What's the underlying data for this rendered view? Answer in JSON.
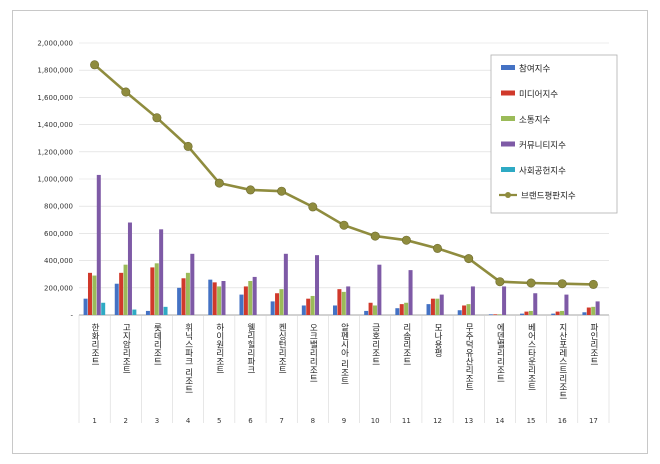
{
  "chart_data": {
    "type": "bar",
    "categories": [
      "한화리조트",
      "고지암리조트",
      "롯데리조트",
      "휘닉스파크 리조트",
      "하이원리조트",
      "웰리힐리파크",
      "켄싱턴리조트",
      "오크밸리리조트",
      "알펜시아 리조트",
      "금호리조트",
      "리솜리조트",
      "모나용평",
      "무주덕유산리조트",
      "에덴밸리리조트",
      "베어스타운리조트",
      "지산포레스트리조트",
      "파인리조트"
    ],
    "category_numbers": [
      "1",
      "2",
      "3",
      "4",
      "5",
      "6",
      "7",
      "8",
      "9",
      "10",
      "11",
      "12",
      "13",
      "14",
      "15",
      "16",
      "17"
    ],
    "ylim": [
      0,
      2000000
    ],
    "yticks": [
      "2,000,000",
      "1,800,000",
      "1,600,000",
      "1,400,000",
      "1,200,000",
      "1,000,000",
      "800,000",
      "600,000",
      "400,000",
      "200,000",
      "-"
    ],
    "series": [
      {
        "name": "참여지수",
        "color": "#4472c4",
        "values": [
          120000,
          230000,
          30000,
          200000,
          260000,
          150000,
          100000,
          70000,
          70000,
          30000,
          50000,
          80000,
          35000,
          5000,
          10000,
          10000,
          20000
        ]
      },
      {
        "name": "미디어지수",
        "color": "#d0392b",
        "values": [
          310000,
          310000,
          350000,
          270000,
          240000,
          210000,
          160000,
          120000,
          190000,
          90000,
          80000,
          120000,
          70000,
          5000,
          25000,
          25000,
          55000
        ]
      },
      {
        "name": "소통지수",
        "color": "#9bbb59",
        "values": [
          290000,
          370000,
          380000,
          310000,
          210000,
          250000,
          190000,
          140000,
          170000,
          70000,
          90000,
          120000,
          80000,
          5000,
          30000,
          30000,
          60000
        ]
      },
      {
        "name": "커뮤니티지수",
        "color": "#7e5aa6",
        "values": [
          1030000,
          680000,
          630000,
          450000,
          250000,
          280000,
          450000,
          440000,
          210000,
          370000,
          330000,
          150000,
          210000,
          210000,
          160000,
          150000,
          100000
        ]
      },
      {
        "name": "사회공헌지수",
        "color": "#2eaac4",
        "values": [
          90000,
          40000,
          60000,
          0,
          0,
          0,
          0,
          0,
          0,
          0,
          0,
          0,
          0,
          0,
          0,
          0,
          0
        ]
      }
    ],
    "line": {
      "name": "브랜드평판지수",
      "color": "#8f8c3e",
      "values": [
        1840000,
        1640000,
        1450000,
        1240000,
        970000,
        920000,
        910000,
        795000,
        660000,
        580000,
        550000,
        490000,
        415000,
        245000,
        235000,
        230000,
        225000
      ]
    },
    "legend_position": "right"
  }
}
